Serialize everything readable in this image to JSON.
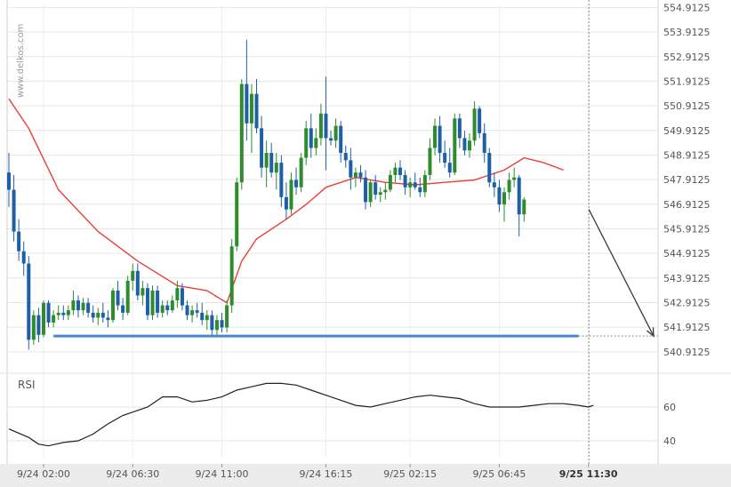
{
  "watermark": "www.delkos.com",
  "chart_data": [
    {
      "type": "candlestick",
      "y_ticks": [
        "554.9125",
        "553.9125",
        "552.9125",
        "551.9125",
        "550.9125",
        "549.9125",
        "548.9125",
        "547.9125",
        "546.9125",
        "545.9125",
        "544.9125",
        "543.9125",
        "542.9125",
        "541.9125",
        "540.9125"
      ],
      "y_range": [
        540.4,
        555.0
      ],
      "x_ticks": [
        {
          "label": "9/24 02:00",
          "bold": false,
          "index": 7
        },
        {
          "label": "9/24 06:30",
          "bold": false,
          "index": 25
        },
        {
          "label": "9/24 11:00",
          "bold": false,
          "index": 43
        },
        {
          "label": "9/24 16:15",
          "bold": false,
          "index": 64
        },
        {
          "label": "9/25 02:15",
          "bold": false,
          "index": 81
        },
        {
          "label": "9/25 06:45",
          "bold": false,
          "index": 99
        },
        {
          "label": "9/25 11:30",
          "bold": true,
          "index": 117
        }
      ],
      "support_level": 541.55,
      "forecast_target": 541.55,
      "colors": {
        "up": "#2e8b2e",
        "down": "#1f5fa8",
        "ma": "#e8403a",
        "support": "#4a86c8",
        "arrow": "#3a3a3a",
        "grid": "#e6e6e6"
      },
      "candles": [
        [
          548.2,
          549.0,
          546.8,
          547.5
        ],
        [
          547.5,
          548.1,
          545.4,
          545.8
        ],
        [
          545.8,
          546.3,
          544.6,
          545.0
        ],
        [
          545.0,
          545.4,
          544.0,
          544.5
        ],
        [
          544.5,
          544.8,
          541.0,
          541.4
        ],
        [
          541.4,
          542.6,
          541.2,
          542.4
        ],
        [
          542.4,
          542.7,
          541.3,
          541.6
        ],
        [
          541.6,
          543.0,
          541.5,
          542.9
        ],
        [
          542.9,
          543.0,
          541.9,
          542.1
        ],
        [
          542.1,
          542.6,
          541.9,
          542.4
        ],
        [
          542.4,
          542.8,
          542.2,
          542.5
        ],
        [
          542.5,
          542.8,
          542.2,
          542.4
        ],
        [
          542.4,
          542.8,
          542.2,
          542.6
        ],
        [
          542.6,
          543.4,
          542.4,
          543.0
        ],
        [
          543.0,
          543.2,
          542.3,
          542.6
        ],
        [
          542.6,
          543.1,
          542.4,
          542.9
        ],
        [
          542.9,
          543.1,
          542.3,
          542.5
        ],
        [
          542.5,
          542.8,
          542.1,
          542.3
        ],
        [
          542.3,
          542.7,
          542.0,
          542.5
        ],
        [
          542.5,
          542.9,
          542.1,
          542.3
        ],
        [
          542.3,
          542.6,
          541.9,
          542.2
        ],
        [
          542.2,
          543.5,
          542.1,
          543.4
        ],
        [
          543.4,
          543.8,
          542.6,
          542.8
        ],
        [
          542.8,
          543.1,
          542.2,
          542.5
        ],
        [
          542.5,
          544.0,
          542.4,
          543.8
        ],
        [
          543.8,
          544.5,
          543.4,
          544.2
        ],
        [
          544.2,
          544.5,
          543.0,
          543.2
        ],
        [
          543.2,
          543.8,
          542.8,
          543.5
        ],
        [
          543.5,
          543.7,
          542.2,
          542.4
        ],
        [
          542.4,
          543.6,
          542.2,
          543.4
        ],
        [
          543.4,
          543.6,
          542.3,
          542.5
        ],
        [
          542.5,
          543.0,
          542.3,
          542.8
        ],
        [
          542.8,
          543.0,
          542.4,
          542.6
        ],
        [
          542.6,
          543.2,
          542.5,
          543.0
        ],
        [
          543.0,
          543.8,
          542.7,
          543.5
        ],
        [
          543.5,
          543.7,
          542.6,
          542.8
        ],
        [
          542.8,
          543.0,
          542.2,
          542.4
        ],
        [
          542.4,
          542.8,
          542.1,
          542.6
        ],
        [
          542.6,
          542.9,
          542.3,
          542.5
        ],
        [
          542.5,
          542.9,
          542.0,
          542.2
        ],
        [
          542.2,
          542.6,
          541.8,
          542.4
        ],
        [
          542.4,
          542.6,
          541.6,
          541.8
        ],
        [
          541.8,
          542.4,
          541.6,
          542.2
        ],
        [
          542.2,
          542.5,
          541.7,
          541.9
        ],
        [
          541.9,
          543.0,
          541.7,
          542.8
        ],
        [
          542.8,
          545.5,
          542.5,
          545.2
        ],
        [
          545.2,
          548.0,
          545.0,
          547.8
        ],
        [
          547.8,
          552.0,
          547.5,
          551.8
        ],
        [
          551.8,
          553.6,
          549.5,
          550.2
        ],
        [
          550.2,
          551.8,
          549.0,
          551.4
        ],
        [
          551.4,
          552.0,
          549.8,
          550.0
        ],
        [
          550.0,
          550.5,
          548.0,
          548.4
        ],
        [
          548.4,
          549.5,
          547.6,
          549.0
        ],
        [
          549.0,
          549.4,
          548.0,
          548.2
        ],
        [
          548.2,
          549.0,
          547.5,
          548.6
        ],
        [
          548.6,
          548.9,
          546.8,
          547.2
        ],
        [
          547.2,
          547.8,
          546.3,
          546.7
        ],
        [
          546.7,
          548.2,
          546.5,
          547.9
        ],
        [
          547.9,
          548.4,
          547.3,
          547.6
        ],
        [
          547.6,
          549.0,
          547.4,
          548.8
        ],
        [
          548.8,
          550.3,
          548.5,
          550.0
        ],
        [
          550.0,
          550.6,
          548.8,
          549.2
        ],
        [
          549.2,
          550.0,
          548.9,
          549.6
        ],
        [
          549.6,
          551.0,
          549.3,
          550.6
        ],
        [
          550.6,
          552.1,
          548.3,
          549.6
        ],
        [
          549.6,
          549.9,
          549.3,
          549.5
        ],
        [
          549.5,
          550.4,
          549.2,
          550.1
        ],
        [
          550.1,
          550.3,
          548.6,
          549.0
        ],
        [
          549.0,
          549.3,
          548.4,
          548.7
        ],
        [
          548.7,
          549.2,
          547.5,
          548.0
        ],
        [
          548.0,
          548.4,
          547.6,
          548.2
        ],
        [
          548.2,
          548.5,
          547.8,
          548.0
        ],
        [
          548.0,
          548.3,
          546.7,
          547.0
        ],
        [
          547.0,
          547.9,
          546.8,
          547.8
        ],
        [
          547.8,
          548.1,
          547.1,
          547.3
        ],
        [
          547.3,
          547.6,
          547.0,
          547.4
        ],
        [
          547.4,
          547.8,
          547.1,
          547.5
        ],
        [
          547.5,
          548.3,
          547.4,
          548.1
        ],
        [
          548.1,
          548.6,
          547.8,
          548.4
        ],
        [
          548.4,
          548.7,
          547.9,
          548.1
        ],
        [
          548.1,
          548.3,
          547.3,
          547.6
        ],
        [
          547.6,
          548.0,
          547.2,
          547.8
        ],
        [
          547.8,
          548.2,
          547.5,
          547.6
        ],
        [
          547.6,
          548.0,
          547.2,
          547.4
        ],
        [
          547.4,
          548.3,
          547.2,
          548.1
        ],
        [
          548.1,
          549.6,
          547.9,
          549.2
        ],
        [
          549.2,
          550.4,
          548.9,
          550.1
        ],
        [
          550.1,
          550.5,
          548.6,
          549.0
        ],
        [
          549.0,
          549.5,
          548.4,
          548.6
        ],
        [
          548.6,
          549.2,
          548.0,
          548.2
        ],
        [
          548.2,
          550.6,
          548.1,
          550.4
        ],
        [
          550.4,
          550.6,
          549.2,
          549.6
        ],
        [
          549.6,
          549.9,
          548.9,
          549.1
        ],
        [
          549.1,
          549.8,
          548.8,
          549.5
        ],
        [
          549.5,
          551.1,
          549.3,
          550.8
        ],
        [
          550.8,
          550.9,
          549.6,
          549.8
        ],
        [
          549.8,
          550.2,
          548.6,
          549.0
        ],
        [
          549.0,
          549.2,
          547.6,
          547.8
        ],
        [
          547.8,
          548.2,
          547.2,
          547.6
        ],
        [
          547.6,
          547.9,
          546.6,
          546.9
        ],
        [
          546.9,
          547.6,
          546.2,
          547.4
        ],
        [
          547.4,
          548.2,
          547.1,
          547.9
        ],
        [
          547.9,
          548.4,
          547.6,
          548.0
        ],
        [
          548.0,
          548.1,
          545.6,
          546.5
        ],
        [
          546.5,
          547.2,
          546.2,
          547.1
        ]
      ],
      "ma": [
        [
          0,
          551.2
        ],
        [
          4,
          550.0
        ],
        [
          10,
          547.5
        ],
        [
          18,
          545.8
        ],
        [
          26,
          544.6
        ],
        [
          34,
          543.6
        ],
        [
          40,
          543.4
        ],
        [
          44,
          542.9
        ],
        [
          47,
          544.6
        ],
        [
          50,
          545.5
        ],
        [
          56,
          546.3
        ],
        [
          60,
          546.9
        ],
        [
          64,
          547.6
        ],
        [
          70,
          548.0
        ],
        [
          76,
          547.8
        ],
        [
          82,
          547.7
        ],
        [
          88,
          547.8
        ],
        [
          94,
          547.9
        ],
        [
          100,
          548.3
        ],
        [
          104,
          548.8
        ],
        [
          108,
          548.6
        ],
        [
          112,
          548.3
        ]
      ],
      "rsi": {
        "label": "RSI",
        "ticks": [
          "60",
          "40"
        ],
        "range": [
          30,
          80
        ],
        "values": [
          [
            0,
            47
          ],
          [
            4,
            42
          ],
          [
            6,
            38
          ],
          [
            8,
            37
          ],
          [
            11,
            39
          ],
          [
            14,
            40
          ],
          [
            17,
            44
          ],
          [
            20,
            50
          ],
          [
            23,
            55
          ],
          [
            26,
            58
          ],
          [
            28,
            60
          ],
          [
            31,
            66
          ],
          [
            34,
            66
          ],
          [
            37,
            63
          ],
          [
            40,
            64
          ],
          [
            43,
            66
          ],
          [
            46,
            70
          ],
          [
            49,
            72
          ],
          [
            52,
            74
          ],
          [
            55,
            74
          ],
          [
            58,
            73
          ],
          [
            61,
            70
          ],
          [
            64,
            67
          ],
          [
            67,
            64
          ],
          [
            70,
            61
          ],
          [
            73,
            60
          ],
          [
            76,
            62
          ],
          [
            79,
            64
          ],
          [
            82,
            66
          ],
          [
            85,
            67
          ],
          [
            88,
            66
          ],
          [
            91,
            65
          ],
          [
            94,
            62
          ],
          [
            97,
            60
          ],
          [
            100,
            60
          ],
          [
            103,
            60
          ],
          [
            106,
            61
          ],
          [
            109,
            62
          ],
          [
            112,
            62
          ],
          [
            115,
            61
          ],
          [
            117,
            60
          ],
          [
            118,
            61
          ]
        ]
      }
    }
  ]
}
